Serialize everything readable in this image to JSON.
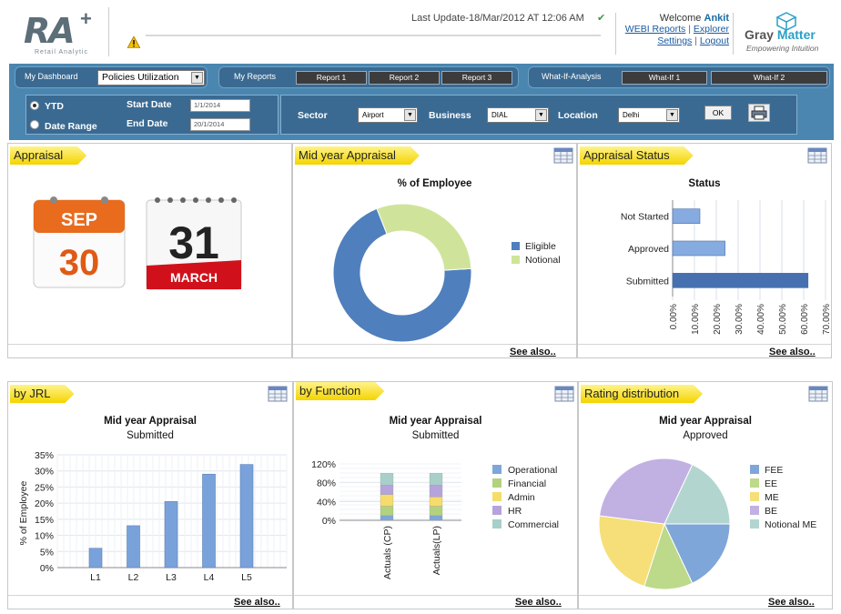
{
  "header": {
    "logo_text": "RA",
    "logo_plus": "+",
    "logo_subtitle": "Retail Analytic",
    "last_update": "Last Update-18/Mar/2012 AT 12:06 AM",
    "welcome_prefix": "Welcome",
    "user_name": "Ankit",
    "link_webi": "WEBI Reports",
    "link_explorer": "Explorer",
    "link_settings": "Settings",
    "link_logout": "Logout",
    "link_sep": "|",
    "brand_name_1": "Gray",
    "brand_name_2": "Matter",
    "brand_tagline": "Empowering Intuition"
  },
  "nav": {
    "dashboard_label": "My Dashboard",
    "dashboard_select": "Policies Utilization",
    "reports_label": "My Reports",
    "reports": [
      "Report 1",
      "Report 2",
      "Report 3"
    ],
    "whatif_label": "What-If-Analysis",
    "whatif": [
      "What-If 1",
      "What-If 2"
    ]
  },
  "filters": {
    "ytd_label": "YTD",
    "daterange_label": "Date Range",
    "start_date_label": "Start Date",
    "end_date_label": "End Date",
    "start_date_value": "1/1/2014",
    "end_date_value": "20/1/2014",
    "sector_label": "Sector",
    "sector_value": "Airport",
    "business_label": "Business",
    "business_value": "DIAL",
    "location_label": "Location",
    "location_value": "Delhi",
    "ok_label": "OK"
  },
  "panels": {
    "appraisal": {
      "title": "Appraisal",
      "cal1_month": "SEP",
      "cal1_day": "30",
      "cal2_day": "31",
      "cal2_month": "MARCH"
    },
    "mid_year": {
      "title": "Mid year Appraisal",
      "chart_title": "% of Employee",
      "see_also": "See also.."
    },
    "status": {
      "title": "Appraisal Status",
      "chart_title": "Status",
      "see_also": "See also.."
    },
    "jrl": {
      "title": "by JRL",
      "chart_title": "Mid year Appraisal",
      "chart_sub": "Submitted",
      "see_also": "See also.."
    },
    "function": {
      "title": "by Function",
      "chart_title": "Mid year Appraisal",
      "chart_sub": "Submitted",
      "see_also": "See also.."
    },
    "rating": {
      "title": "Rating distribution",
      "chart_title": "Mid year Appraisal",
      "chart_sub": "Approved",
      "see_also": "See also.."
    }
  },
  "colors": {
    "nav_blue": "#4a86b0",
    "title_yellow": "#f4d400",
    "bar_blue": "#7ba3d8",
    "donut_blue": "#4a7bb7",
    "donut_green": "#c8e08a"
  },
  "chart_data": [
    {
      "type": "pie",
      "title": "% of Employee",
      "categories": [
        "Eligible",
        "Notional"
      ],
      "values": [
        70,
        30
      ],
      "colors": [
        "#4f7fbd",
        "#cfe49a"
      ]
    },
    {
      "type": "bar",
      "title": "Status",
      "orientation": "horizontal",
      "categories": [
        "Not Started",
        "Approved",
        "Submitted"
      ],
      "values": [
        12.5,
        24,
        62
      ],
      "xticks": [
        "0.00%",
        "10.00%",
        "20.00%",
        "30.00%",
        "40.00%",
        "50.00%",
        "60.00%",
        "70.00%"
      ],
      "xlim": [
        0,
        70
      ]
    },
    {
      "type": "bar",
      "title": "Mid year Appraisal",
      "subtitle": "Submitted",
      "categories": [
        "L1",
        "L2",
        "L3",
        "L4",
        "L5"
      ],
      "values": [
        6,
        13,
        20.5,
        29,
        32
      ],
      "ylabel": "% of Employee",
      "yticks": [
        "0%",
        "5%",
        "10%",
        "15%",
        "20%",
        "25%",
        "30%",
        "35%"
      ],
      "ylim": [
        0,
        35
      ]
    },
    {
      "type": "bar",
      "title": "Mid year Appraisal",
      "subtitle": "Submitted",
      "stacked": true,
      "categories": [
        "Actuals (CP)",
        "Actuals(LP)"
      ],
      "yticks": [
        "0%",
        "40%",
        "80%",
        "120%"
      ],
      "ylim": [
        0,
        120
      ],
      "series": [
        {
          "name": "Operational",
          "values": [
            10,
            10
          ],
          "color": "#7fa6d8"
        },
        {
          "name": "Financial",
          "values": [
            20,
            20
          ],
          "color": "#b4d27e"
        },
        {
          "name": "Admin",
          "values": [
            25,
            20
          ],
          "color": "#f6dc6a"
        },
        {
          "name": "HR",
          "values": [
            20,
            25
          ],
          "color": "#b6a3dc"
        },
        {
          "name": "Commercial",
          "values": [
            25,
            25
          ],
          "color": "#a8cfc9"
        }
      ]
    },
    {
      "type": "pie",
      "title": "Mid year Appraisal",
      "subtitle": "Approved",
      "categories": [
        "FEE",
        "EE",
        "ME",
        "BE",
        "Notional ME"
      ],
      "values": [
        18,
        12,
        22,
        30,
        18
      ],
      "colors": [
        "#7fa6d8",
        "#bdd98a",
        "#f6df78",
        "#c1b1e2",
        "#b2d6cf"
      ]
    }
  ]
}
